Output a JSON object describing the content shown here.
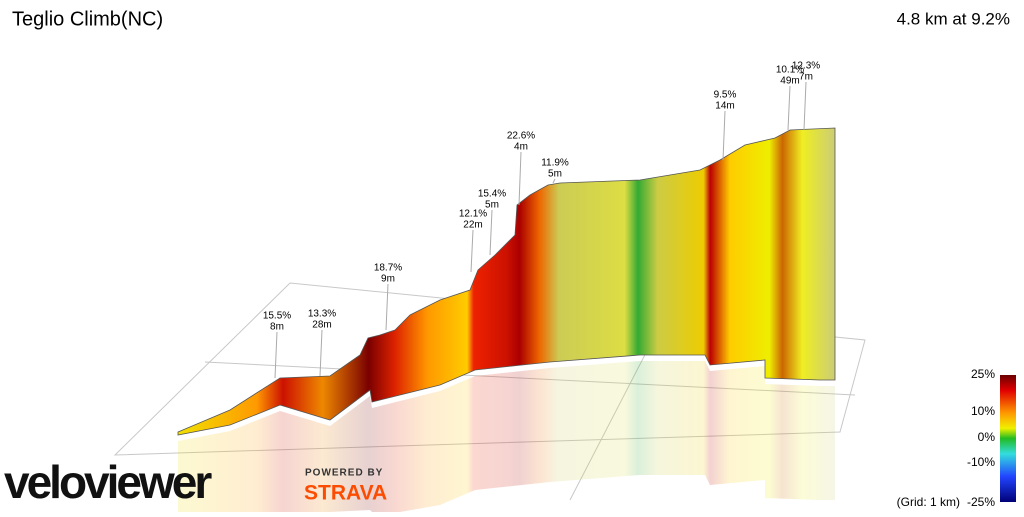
{
  "header": {
    "title": "Teglio Climb(NC)",
    "summary": "4.8 km at 9.2%"
  },
  "annotations": [
    {
      "grade": "15.5%",
      "length": "8m"
    },
    {
      "grade": "13.3%",
      "length": "28m"
    },
    {
      "grade": "18.7%",
      "length": "9m"
    },
    {
      "grade": "12.1%",
      "length": "22m"
    },
    {
      "grade": "15.4%",
      "length": "5m"
    },
    {
      "grade": "22.6%",
      "length": "4m"
    },
    {
      "grade": "11.9%",
      "length": "5m"
    },
    {
      "grade": "9.5%",
      "length": "14m"
    },
    {
      "grade": "10.1%",
      "length": "49m"
    },
    {
      "grade": "12.3%",
      "length": "7m"
    }
  ],
  "legend": {
    "labels": [
      "25%",
      "10%",
      "0%",
      "-10%",
      "-25%"
    ],
    "grid_note": "(Grid: 1 km)"
  },
  "branding": {
    "logo": "veloviewer",
    "powered_by": "POWERED BY",
    "partner": "STRAVA"
  }
}
